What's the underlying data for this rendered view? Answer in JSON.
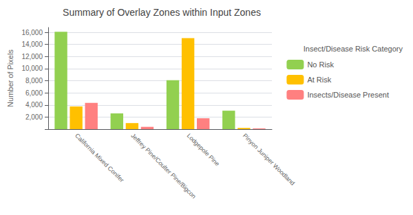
{
  "chart_data": {
    "type": "bar",
    "title": "Summary of Overlay Zones within Input Zones",
    "ylabel": "Number of Pixels",
    "categories": [
      "California Mixed Conifer",
      "Jeffrey Pine/Coulter Pine/Bigcon",
      "Lodgepole Pine",
      "Pinyon Juniper Woodland"
    ],
    "series": [
      {
        "name": "No Risk",
        "color": "#92D050",
        "values": [
          16100,
          2600,
          8100,
          3050
        ]
      },
      {
        "name": "At Risk",
        "color": "#FFC000",
        "values": [
          3750,
          1000,
          15050,
          200
        ]
      },
      {
        "name": "Insects/Disease Present",
        "color": "#FF8080",
        "values": [
          4350,
          380,
          1800,
          120
        ]
      }
    ],
    "legend_title": "Insect/Disease Risk Category",
    "legend": "right",
    "grid": true,
    "ylim": [
      0,
      16800
    ],
    "yticks": [
      {
        "value": 0,
        "label": ""
      },
      {
        "value": 2000,
        "label": "2,000"
      },
      {
        "value": 4000,
        "label": "4,000"
      },
      {
        "value": 6000,
        "label": "6,000"
      },
      {
        "value": 8000,
        "label": "8,000"
      },
      {
        "value": 10000,
        "label": "10,000"
      },
      {
        "value": 12000,
        "label": "12,000"
      },
      {
        "value": 14000,
        "label": "14,000"
      },
      {
        "value": 16000,
        "label": "16,000"
      }
    ]
  }
}
